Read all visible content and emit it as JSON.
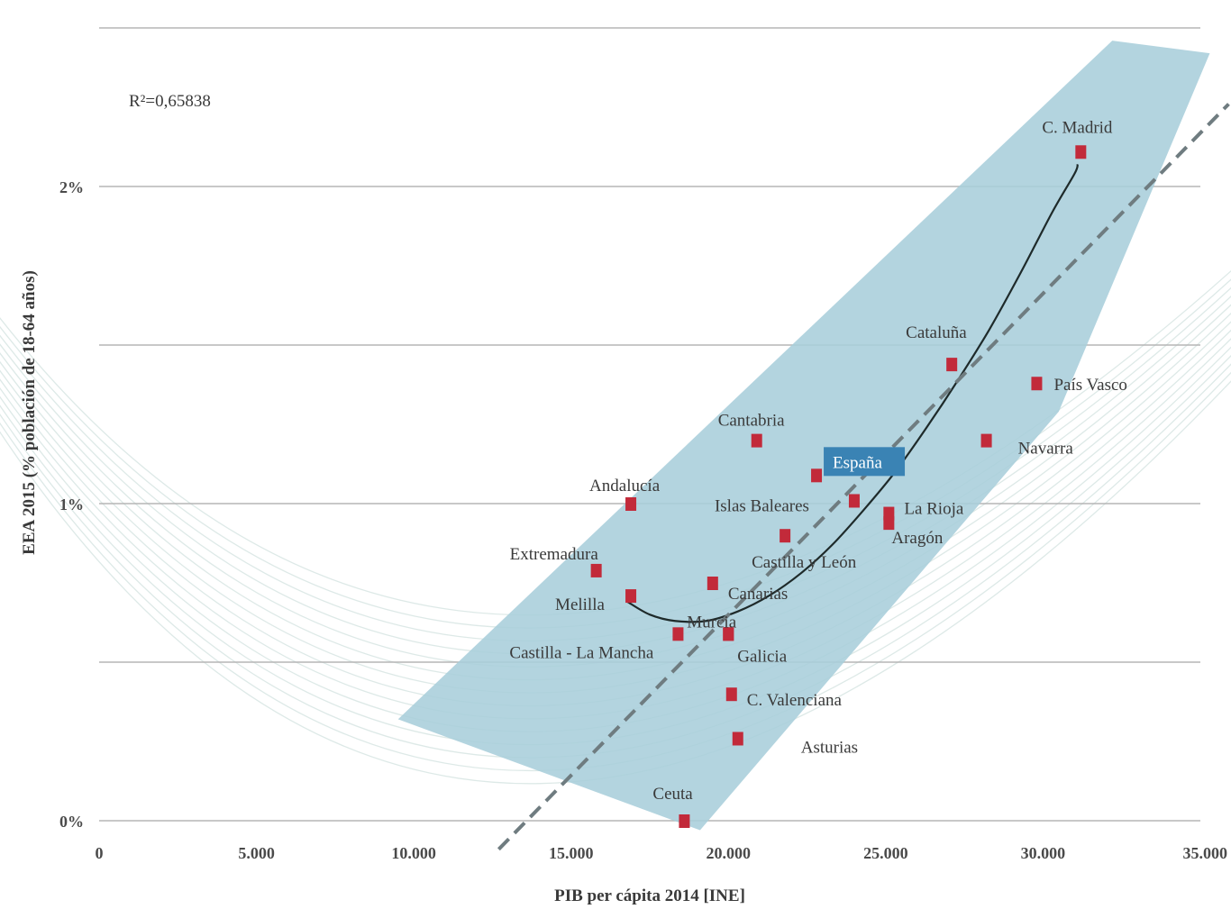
{
  "chart_data": {
    "type": "scatter",
    "xlabel": "PIB per cápita 2014 [INE]",
    "ylabel": "EEA 2015 (% población de 18-64 años)",
    "xlim": [
      0,
      35000
    ],
    "ylim": [
      0,
      2.5
    ],
    "x_ticks": [
      {
        "value": 0,
        "label": "0"
      },
      {
        "value": 5000,
        "label": "5.000"
      },
      {
        "value": 10000,
        "label": "10.000"
      },
      {
        "value": 15000,
        "label": "15.000"
      },
      {
        "value": 20000,
        "label": "20.000"
      },
      {
        "value": 25000,
        "label": "25.000"
      },
      {
        "value": 30000,
        "label": "30.000"
      },
      {
        "value": 35000,
        "label": "35.000"
      }
    ],
    "y_ticks": [
      {
        "value": 0,
        "label": "0%"
      },
      {
        "value": 1,
        "label": "1%"
      },
      {
        "value": 2,
        "label": "2%"
      }
    ],
    "gridlines": [
      0,
      0.5,
      1,
      1.5,
      2,
      2.5
    ],
    "r2_text": "R²=0,65838",
    "points": [
      {
        "name": "C. Madrid",
        "x": 31200,
        "y": 2.11
      },
      {
        "name": "Cataluña",
        "x": 27100,
        "y": 1.44
      },
      {
        "name": "País Vasco",
        "x": 29800,
        "y": 1.38
      },
      {
        "name": "Navarra",
        "x": 28200,
        "y": 1.2
      },
      {
        "name": "Cantabria",
        "x": 20900,
        "y": 1.2
      },
      {
        "name": "España",
        "x": 22800,
        "y": 1.09,
        "highlight": true
      },
      {
        "name": "Islas Baleares",
        "x": 24000,
        "y": 1.01
      },
      {
        "name": "La Rioja",
        "x": 25100,
        "y": 0.97
      },
      {
        "name": "Aragón",
        "x": 25100,
        "y": 0.94
      },
      {
        "name": "Andalucía",
        "x": 16900,
        "y": 1.0
      },
      {
        "name": "Castilla y León",
        "x": 21800,
        "y": 0.9
      },
      {
        "name": "Extremadura",
        "x": 15800,
        "y": 0.79
      },
      {
        "name": "Canarias",
        "x": 19500,
        "y": 0.75
      },
      {
        "name": "Melilla",
        "x": 16900,
        "y": 0.71
      },
      {
        "name": "Murcia",
        "x": 20000,
        "y": 0.59
      },
      {
        "name": "Castilla - La Mancha",
        "x": 18400,
        "y": 0.59
      },
      {
        "name": "Galicia",
        "x": 20000,
        "y": 0.59
      },
      {
        "name": "C. Valenciana",
        "x": 20100,
        "y": 0.4
      },
      {
        "name": "Asturias",
        "x": 20300,
        "y": 0.26
      },
      {
        "name": "Ceuta",
        "x": 18600,
        "y": 0.0
      }
    ],
    "trend_curve": [
      {
        "x": 16800,
        "y": 0.69
      },
      {
        "x": 17500,
        "y": 0.65
      },
      {
        "x": 18300,
        "y": 0.63
      },
      {
        "x": 19300,
        "y": 0.63
      },
      {
        "x": 20300,
        "y": 0.66
      },
      {
        "x": 21300,
        "y": 0.71
      },
      {
        "x": 22300,
        "y": 0.78
      },
      {
        "x": 23300,
        "y": 0.87
      },
      {
        "x": 24300,
        "y": 0.98
      },
      {
        "x": 25300,
        "y": 1.1
      },
      {
        "x": 26300,
        "y": 1.24
      },
      {
        "x": 27300,
        "y": 1.39
      },
      {
        "x": 28300,
        "y": 1.55
      },
      {
        "x": 29300,
        "y": 1.73
      },
      {
        "x": 30300,
        "y": 1.92
      },
      {
        "x": 31000,
        "y": 2.04
      },
      {
        "x": 31100,
        "y": 2.07
      }
    ],
    "dashed_line": [
      {
        "x": 12700,
        "y": -0.09
      },
      {
        "x": 35900,
        "y": 2.26
      }
    ],
    "band": [
      {
        "x": 9500,
        "y": 0.32
      },
      {
        "x": 32200,
        "y": 2.46
      },
      {
        "x": 35300,
        "y": 2.42
      },
      {
        "x": 30500,
        "y": 1.29
      },
      {
        "x": 19100,
        "y": -0.03
      }
    ],
    "colors": {
      "marker": "#c22a3a",
      "band": "#a9cedb",
      "trend": "#1e2a2a",
      "dashed": "#6f7c80",
      "highlight_fill": "#3a83b4",
      "gridline": "#b5b5b5"
    }
  }
}
